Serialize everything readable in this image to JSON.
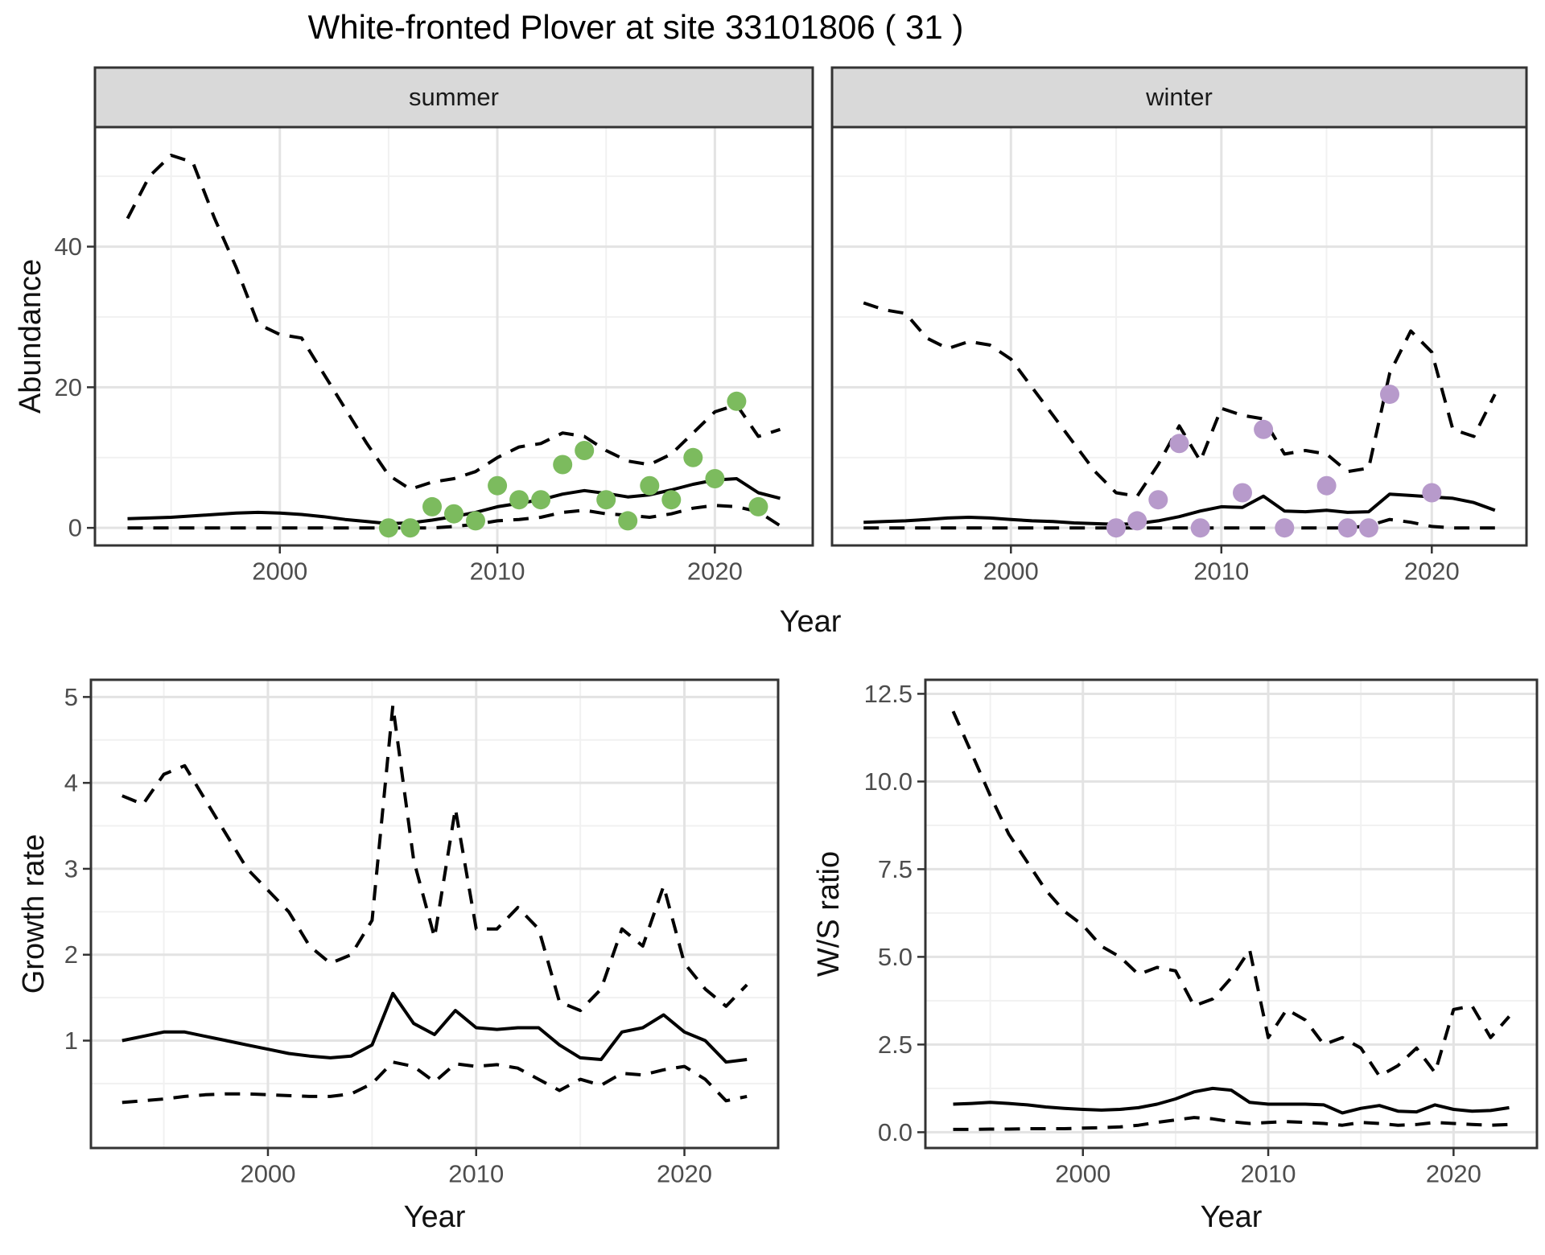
{
  "title": "White-fronted Plover at site 33101806 ( 31 )",
  "colors": {
    "summer_dot": "#7CBB5E",
    "winter_dot": "#B79ACB",
    "line": "#000000",
    "strip_bg": "#D9D9D9",
    "panel_border": "#333333",
    "grid_major": "#E3E3E3",
    "grid_minor": "#F1F1F1",
    "axis_text": "#4D4D4D"
  },
  "axis_titles": {
    "abundance": "Abundance",
    "year_top": "Year",
    "growth": "Growth rate",
    "year_bottom_left": "Year",
    "ws": "W/S ratio",
    "year_bottom_right": "Year"
  },
  "facets": {
    "summer": "summer",
    "winter": "winter"
  },
  "chart_data": [
    {
      "id": "abundance-summer",
      "type": "line",
      "facet_label": "summer",
      "ylabel": "Abundance",
      "xlabel": "Year",
      "x": [
        1993,
        1994,
        1995,
        1996,
        1997,
        1998,
        1999,
        2000,
        2001,
        2002,
        2003,
        2004,
        2005,
        2006,
        2007,
        2008,
        2009,
        2010,
        2011,
        2012,
        2013,
        2014,
        2015,
        2016,
        2017,
        2018,
        2019,
        2020,
        2021,
        2022,
        2023
      ],
      "series": [
        {
          "name": "upper-ci",
          "style": "dashed",
          "values": [
            44,
            50,
            53,
            52,
            44,
            37,
            29,
            27.5,
            27,
            22,
            17,
            12,
            7.5,
            5.5,
            6.5,
            7,
            8,
            10,
            11.5,
            12,
            13.5,
            13,
            11,
            9.5,
            9,
            10.5,
            13.5,
            16.5,
            17.5,
            13,
            14
          ]
        },
        {
          "name": "median",
          "style": "solid",
          "values": [
            1.3,
            1.4,
            1.5,
            1.7,
            1.9,
            2.1,
            2.2,
            2.1,
            1.9,
            1.6,
            1.2,
            0.9,
            0.6,
            0.7,
            1.1,
            1.6,
            2.2,
            3,
            3.5,
            4,
            4.8,
            5.3,
            4.9,
            4.4,
            4.7,
            5.4,
            6.2,
            6.8,
            7,
            5,
            4.2
          ]
        },
        {
          "name": "lower-ci",
          "style": "dashed",
          "values": [
            0,
            0,
            0,
            0,
            0,
            0,
            0,
            0,
            0,
            0,
            0,
            0,
            0,
            0,
            0,
            0.2,
            0.5,
            1,
            1.2,
            1.5,
            2.2,
            2.5,
            2,
            1.8,
            1.5,
            2,
            2.8,
            3.2,
            3,
            2.3,
            0.3
          ]
        }
      ],
      "points": {
        "name": "summer-observations",
        "color": "#7CBB5E",
        "data": [
          [
            2005,
            0
          ],
          [
            2006,
            0
          ],
          [
            2007,
            3
          ],
          [
            2008,
            2
          ],
          [
            2009,
            1
          ],
          [
            2010,
            6
          ],
          [
            2011,
            4
          ],
          [
            2012,
            4
          ],
          [
            2013,
            9
          ],
          [
            2014,
            11
          ],
          [
            2015,
            4
          ],
          [
            2016,
            1
          ],
          [
            2017,
            6
          ],
          [
            2018,
            4
          ],
          [
            2019,
            10
          ],
          [
            2020,
            7
          ],
          [
            2021,
            18
          ],
          [
            2022,
            3
          ]
        ]
      },
      "xlim": [
        1991.5,
        2024.5
      ],
      "ylim": [
        -2.5,
        57
      ],
      "xticks": {
        "values": [
          2000,
          2010,
          2020
        ],
        "labels": [
          "2000",
          "2010",
          "2020"
        ]
      },
      "xminor": [
        1995,
        2005,
        2015
      ],
      "yticks": {
        "values": [
          0,
          20,
          40
        ],
        "labels": [
          "0",
          "20",
          "40"
        ]
      },
      "yminor": [
        10,
        30,
        50
      ],
      "show_y_labels": true
    },
    {
      "id": "abundance-winter",
      "type": "line",
      "facet_label": "winter",
      "ylabel": "Abundance",
      "xlabel": "Year",
      "x": [
        1993,
        1994,
        1995,
        1996,
        1997,
        1998,
        1999,
        2000,
        2001,
        2002,
        2003,
        2004,
        2005,
        2006,
        2007,
        2008,
        2009,
        2010,
        2011,
        2012,
        2013,
        2014,
        2015,
        2016,
        2017,
        2018,
        2019,
        2020,
        2021,
        2022,
        2023
      ],
      "series": [
        {
          "name": "upper-ci",
          "style": "dashed",
          "values": [
            32,
            31,
            30.5,
            27,
            25.5,
            26.5,
            26,
            24,
            20,
            16,
            12,
            8,
            5,
            4.5,
            9,
            14.5,
            9.5,
            17,
            16,
            15.5,
            10.5,
            11,
            10.5,
            8,
            8.5,
            22,
            28,
            25,
            14,
            13,
            19
          ]
        },
        {
          "name": "median",
          "style": "solid",
          "values": [
            0.8,
            0.9,
            1,
            1.2,
            1.4,
            1.5,
            1.4,
            1.2,
            1,
            0.9,
            0.7,
            0.6,
            0.5,
            0.6,
            1,
            1.6,
            2.4,
            3,
            2.9,
            4.5,
            2.4,
            2.3,
            2.5,
            2.2,
            2.3,
            4.8,
            4.6,
            4.4,
            4.2,
            3.6,
            2.5
          ]
        },
        {
          "name": "lower-ci",
          "style": "dashed",
          "values": [
            0,
            0,
            0,
            0,
            0,
            0,
            0,
            0,
            0,
            0,
            0,
            0,
            0,
            0,
            0,
            0,
            0,
            0,
            0,
            0,
            0,
            0,
            0,
            0,
            0.3,
            1.2,
            0.8,
            0.2,
            0,
            0,
            0
          ]
        }
      ],
      "points": {
        "name": "winter-observations",
        "color": "#B79ACB",
        "data": [
          [
            2005,
            0
          ],
          [
            2006,
            1
          ],
          [
            2007,
            4
          ],
          [
            2008,
            12
          ],
          [
            2009,
            0
          ],
          [
            2011,
            5
          ],
          [
            2012,
            14
          ],
          [
            2013,
            0
          ],
          [
            2015,
            6
          ],
          [
            2016,
            0
          ],
          [
            2017,
            0
          ],
          [
            2018,
            19
          ],
          [
            2020,
            5
          ]
        ]
      },
      "xlim": [
        1991.5,
        2024.5
      ],
      "ylim": [
        -2.5,
        57
      ],
      "xticks": {
        "values": [
          2000,
          2010,
          2020
        ],
        "labels": [
          "2000",
          "2010",
          "2020"
        ]
      },
      "xminor": [
        1995,
        2005,
        2015
      ],
      "yticks": {
        "values": [
          0,
          20,
          40
        ],
        "labels": [
          "0",
          "20",
          "40"
        ]
      },
      "yminor": [
        10,
        30,
        50
      ],
      "show_y_labels": false
    },
    {
      "id": "growth-rate",
      "type": "line",
      "ylabel": "Growth rate",
      "xlabel": "Year",
      "x": [
        1993,
        1994,
        1995,
        1996,
        1997,
        1998,
        1999,
        2000,
        2001,
        2002,
        2003,
        2004,
        2005,
        2006,
        2007,
        2008,
        2009,
        2010,
        2011,
        2012,
        2013,
        2014,
        2015,
        2016,
        2017,
        2018,
        2019,
        2020,
        2021,
        2022,
        2023
      ],
      "series": [
        {
          "name": "upper-ci",
          "style": "dashed",
          "values": [
            3.85,
            3.75,
            4.1,
            4.2,
            3.8,
            3.4,
            3,
            2.75,
            2.5,
            2.1,
            1.9,
            2,
            2.4,
            4.9,
            3.1,
            2.2,
            3.7,
            2.3,
            2.3,
            2.55,
            2.3,
            1.45,
            1.35,
            1.6,
            2.3,
            2.1,
            2.8,
            1.9,
            1.6,
            1.4,
            1.65
          ]
        },
        {
          "name": "median",
          "style": "solid",
          "values": [
            1,
            1.05,
            1.1,
            1.1,
            1.05,
            1,
            0.95,
            0.9,
            0.85,
            0.82,
            0.8,
            0.82,
            0.95,
            1.55,
            1.2,
            1.07,
            1.35,
            1.15,
            1.13,
            1.15,
            1.15,
            0.95,
            0.8,
            0.78,
            1.1,
            1.15,
            1.3,
            1.1,
            1,
            0.75,
            0.78
          ]
        },
        {
          "name": "lower-ci",
          "style": "dashed",
          "values": [
            0.28,
            0.3,
            0.32,
            0.35,
            0.37,
            0.38,
            0.38,
            0.37,
            0.36,
            0.35,
            0.35,
            0.38,
            0.5,
            0.75,
            0.7,
            0.52,
            0.73,
            0.7,
            0.72,
            0.68,
            0.55,
            0.42,
            0.55,
            0.48,
            0.62,
            0.6,
            0.66,
            0.7,
            0.55,
            0.3,
            0.35
          ]
        }
      ],
      "xlim": [
        1991.5,
        2024.5
      ],
      "ylim": [
        -0.25,
        5.2
      ],
      "xticks": {
        "values": [
          2000,
          2010,
          2020
        ],
        "labels": [
          "2000",
          "2010",
          "2020"
        ]
      },
      "xminor": [
        1995,
        2005,
        2015
      ],
      "yticks": {
        "values": [
          1,
          2,
          3,
          4,
          5
        ],
        "labels": [
          "1",
          "2",
          "3",
          "4",
          "5"
        ]
      },
      "yminor": [
        0.5,
        1.5,
        2.5,
        3.5,
        4.5
      ],
      "show_y_labels": true
    },
    {
      "id": "ws-ratio",
      "type": "line",
      "ylabel": "W/S ratio",
      "xlabel": "Year",
      "x": [
        1993,
        1994,
        1995,
        1996,
        1997,
        1998,
        1999,
        2000,
        2001,
        2002,
        2003,
        2004,
        2005,
        2006,
        2007,
        2008,
        2009,
        2010,
        2011,
        2012,
        2013,
        2014,
        2015,
        2016,
        2017,
        2018,
        2019,
        2020,
        2021,
        2022,
        2023
      ],
      "series": [
        {
          "name": "upper-ci",
          "style": "dashed",
          "values": [
            12,
            10.8,
            9.6,
            8.5,
            7.7,
            6.9,
            6.3,
            5.9,
            5.3,
            5,
            4.5,
            4.7,
            4.6,
            3.6,
            3.8,
            4.4,
            5.2,
            2.7,
            3.5,
            3.2,
            2.5,
            2.7,
            2.4,
            1.6,
            1.9,
            2.4,
            1.7,
            3.5,
            3.6,
            2.7,
            3.3
          ]
        },
        {
          "name": "median",
          "style": "solid",
          "values": [
            0.8,
            0.82,
            0.85,
            0.82,
            0.78,
            0.72,
            0.68,
            0.65,
            0.63,
            0.65,
            0.7,
            0.8,
            0.95,
            1.15,
            1.25,
            1.2,
            0.85,
            0.8,
            0.8,
            0.8,
            0.78,
            0.55,
            0.68,
            0.76,
            0.6,
            0.58,
            0.78,
            0.65,
            0.6,
            0.62,
            0.7
          ]
        },
        {
          "name": "lower-ci",
          "style": "dashed",
          "values": [
            0.08,
            0.08,
            0.09,
            0.09,
            0.1,
            0.1,
            0.1,
            0.12,
            0.13,
            0.15,
            0.2,
            0.28,
            0.35,
            0.42,
            0.38,
            0.3,
            0.25,
            0.28,
            0.3,
            0.28,
            0.25,
            0.2,
            0.28,
            0.25,
            0.2,
            0.22,
            0.28,
            0.25,
            0.22,
            0.2,
            0.22
          ]
        }
      ],
      "xlim": [
        1991.5,
        2024.5
      ],
      "ylim": [
        -0.45,
        12.9
      ],
      "xticks": {
        "values": [
          2000,
          2010,
          2020
        ],
        "labels": [
          "2000",
          "2010",
          "2020"
        ]
      },
      "xminor": [
        1995,
        2005,
        2015
      ],
      "yticks": {
        "values": [
          0,
          2.5,
          5,
          7.5,
          10,
          12.5
        ],
        "labels": [
          "0.0",
          "2.5",
          "5.0",
          "7.5",
          "10.0",
          "12.5"
        ]
      },
      "yminor": [
        1.25,
        3.75,
        6.25,
        8.75,
        11.25
      ],
      "show_y_labels": true
    }
  ]
}
